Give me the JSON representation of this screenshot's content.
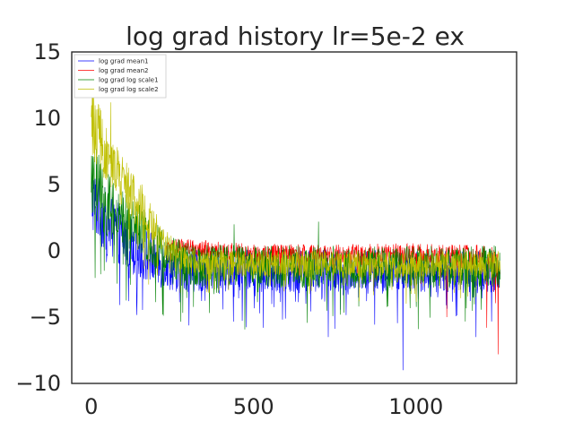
{
  "chart_data": {
    "type": "line",
    "title": "log grad history lr=5e-2 ex",
    "xlabel": "",
    "ylabel": "",
    "xlim": [
      -60,
      1310
    ],
    "ylim": [
      -10,
      15
    ],
    "x_ticks": [
      0,
      500,
      1000
    ],
    "y_ticks": [
      15,
      10,
      5,
      0,
      -5,
      -10
    ],
    "x_tick_labels": [
      "0",
      "500",
      "1000"
    ],
    "y_tick_labels": [
      "15",
      "10",
      "5",
      "0",
      "−5",
      "−10"
    ],
    "grid": false,
    "legend_position": "top-left",
    "n_points": 1260,
    "series": [
      {
        "name": "log grad mean1",
        "color": "#0000ff",
        "envelope_x": [
          0,
          50,
          100,
          150,
          200,
          250,
          300,
          400,
          600,
          800,
          960,
          1000,
          1200,
          1250
        ],
        "envelope_mean": [
          4.0,
          2.0,
          1.0,
          0.0,
          -0.8,
          -1.2,
          -1.5,
          -1.5,
          -1.5,
          -1.5,
          -1.5,
          -1.5,
          -1.6,
          -1.6
        ],
        "envelope_spread": [
          2.5,
          2.5,
          2.2,
          2.2,
          2.0,
          1.8,
          1.6,
          1.6,
          1.6,
          1.6,
          1.6,
          1.6,
          1.6,
          1.6
        ],
        "spikes": [
          [
            960,
            -9.0
          ],
          [
            730,
            -6.5
          ],
          [
            530,
            -5.8
          ],
          [
            1185,
            -6.5
          ]
        ]
      },
      {
        "name": "log grad mean2",
        "color": "#ff0000",
        "envelope_x": [
          0,
          200,
          250,
          300,
          500,
          800,
          1000,
          1200,
          1250
        ],
        "envelope_mean": [
          0.0,
          0.0,
          0.3,
          0.3,
          -0.3,
          -0.3,
          -0.2,
          -0.5,
          -1.0
        ],
        "envelope_spread": [
          0.0,
          0.0,
          0.6,
          0.6,
          0.8,
          0.8,
          0.8,
          1.0,
          1.2
        ],
        "start_x": 230,
        "spikes": [
          [
            1253,
            -7.8
          ],
          [
            1218,
            -5.8
          ],
          [
            1095,
            -5.0
          ]
        ]
      },
      {
        "name": "log grad log scale1",
        "color": "#008000",
        "envelope_x": [
          0,
          50,
          100,
          150,
          200,
          250,
          300,
          500,
          800,
          1000,
          1250
        ],
        "envelope_mean": [
          5.5,
          3.5,
          2.5,
          1.5,
          0.5,
          -0.5,
          -1.0,
          -1.2,
          -1.2,
          -1.2,
          -1.2
        ],
        "envelope_spread": [
          3.0,
          2.5,
          2.0,
          2.0,
          1.8,
          1.7,
          1.6,
          1.6,
          1.6,
          1.6,
          1.6
        ],
        "spikes": [
          [
            40,
            -1.5
          ],
          [
            220,
            -4.8
          ],
          [
            440,
            2.0
          ],
          [
            700,
            2.2
          ]
        ]
      },
      {
        "name": "log grad log scale2",
        "color": "#bfbf00",
        "envelope_x": [
          0,
          25,
          50,
          100,
          150,
          200,
          250,
          300,
          500,
          800,
          1000,
          1250
        ],
        "envelope_mean": [
          9.5,
          8.5,
          7.0,
          5.0,
          3.5,
          1.5,
          0.0,
          -0.8,
          -1.0,
          -1.0,
          -1.0,
          -1.0
        ],
        "envelope_spread": [
          2.5,
          2.5,
          2.0,
          2.0,
          1.8,
          1.5,
          1.0,
          1.0,
          1.0,
          1.0,
          1.0,
          1.0
        ],
        "spikes": [
          [
            5,
            12.8
          ],
          [
            60,
            11.2
          ],
          [
            30,
            10.6
          ],
          [
            825,
            -3.8
          ]
        ]
      }
    ]
  }
}
